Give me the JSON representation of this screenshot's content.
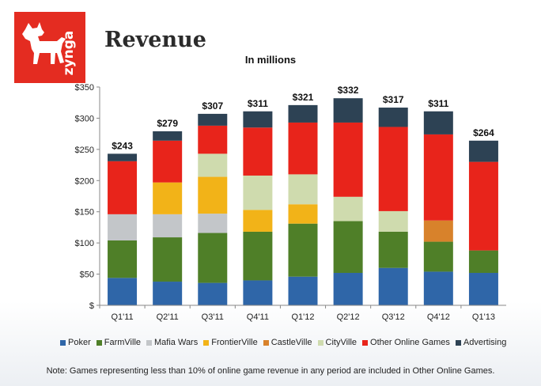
{
  "header": {
    "title": "Revenue",
    "subtitle": "In millions",
    "logo_text": "zynga"
  },
  "note": "Note: Games representing less than 10% of online game revenue in any period are included in Other Online Games.",
  "colors": {
    "logo_bg": "#e42c21"
  },
  "chart_data": {
    "type": "bar",
    "stacked": true,
    "title": "Revenue",
    "subtitle": "In millions",
    "xlabel": "",
    "ylabel": "",
    "ylim": [
      0,
      350
    ],
    "yticks": [
      0,
      50,
      100,
      150,
      200,
      250,
      300,
      350
    ],
    "ytick_labels": [
      "$",
      "$50",
      "$100",
      "$150",
      "$200",
      "$250",
      "$300",
      "$350"
    ],
    "grid": false,
    "legend_position": "bottom",
    "categories": [
      "Q1'11",
      "Q2'11",
      "Q3'11",
      "Q4'11",
      "Q1'12",
      "Q2'12",
      "Q3'12",
      "Q4'12",
      "Q1'13"
    ],
    "totals": [
      243,
      279,
      307,
      311,
      321,
      332,
      317,
      311,
      264
    ],
    "total_labels": [
      "$243",
      "$279",
      "$307",
      "$311",
      "$321",
      "$332",
      "$317",
      "$311",
      "$264"
    ],
    "series": [
      {
        "name": "Poker",
        "color": "#2f66a8",
        "values": [
          44,
          38,
          36,
          40,
          46,
          52,
          60,
          54,
          52
        ]
      },
      {
        "name": "FarmVille",
        "color": "#4f7f28",
        "values": [
          60,
          71,
          80,
          78,
          85,
          83,
          58,
          48,
          36
        ]
      },
      {
        "name": "Mafia Wars",
        "color": "#c3c6c9",
        "values": [
          42,
          37,
          31,
          0,
          0,
          0,
          0,
          0,
          0
        ]
      },
      {
        "name": "FrontierVille",
        "color": "#f2b318",
        "values": [
          0,
          51,
          59,
          35,
          31,
          0,
          0,
          0,
          0
        ]
      },
      {
        "name": "CastleVille",
        "color": "#d8822b",
        "values": [
          0,
          0,
          0,
          0,
          0,
          0,
          0,
          34,
          0
        ]
      },
      {
        "name": "CityVille",
        "color": "#cfdbae",
        "values": [
          0,
          0,
          37,
          55,
          48,
          39,
          33,
          0,
          0
        ]
      },
      {
        "name": "Other Online Games",
        "color": "#e8241b",
        "values": [
          85,
          67,
          45,
          77,
          83,
          119,
          135,
          138,
          142
        ]
      },
      {
        "name": "Advertising",
        "color": "#2d4254",
        "values": [
          12,
          15,
          19,
          26,
          28,
          39,
          31,
          37,
          34
        ]
      }
    ]
  }
}
